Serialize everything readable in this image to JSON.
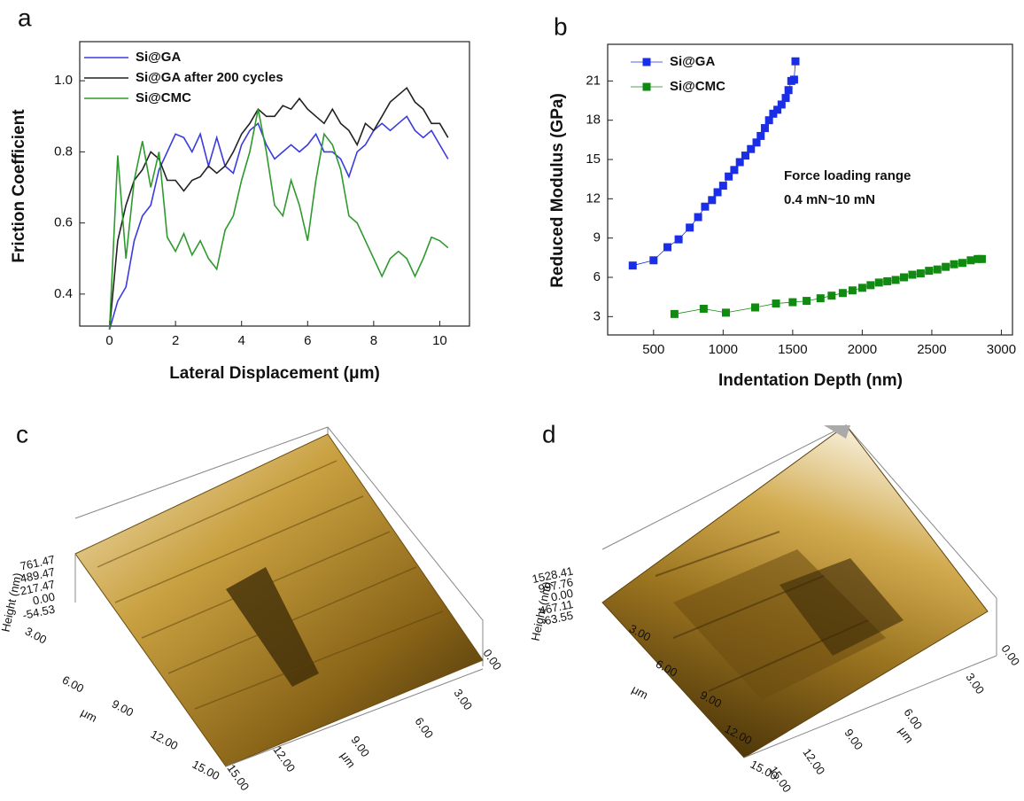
{
  "chart_data": [
    {
      "type": "line",
      "panel_label": "a",
      "x_label": "Lateral Displacement (μm)",
      "y_label": "Friction Coefficient",
      "xlim": [
        -0.9,
        10.9
      ],
      "ylim": [
        0.31,
        1.11
      ],
      "xticks": [
        0,
        2,
        4,
        6,
        8,
        10
      ],
      "yticks": [
        0.4,
        0.6,
        0.8,
        {
          "value": 1,
          "label": "1.0"
        }
      ],
      "x": [
        0,
        0.25,
        0.5,
        0.75,
        1,
        1.25,
        1.5,
        1.75,
        2,
        2.25,
        2.5,
        2.75,
        3,
        3.25,
        3.5,
        3.75,
        4,
        4.25,
        4.5,
        4.75,
        5,
        5.25,
        5.5,
        5.75,
        6,
        6.25,
        6.5,
        6.75,
        7,
        7.25,
        7.5,
        7.75,
        8,
        8.25,
        8.5,
        8.75,
        9,
        9.25,
        9.5,
        9.75,
        10,
        10.25
      ],
      "series": [
        {
          "name": "Si@GA",
          "color": "#3a3ae0",
          "values": [
            0.3,
            0.38,
            0.42,
            0.55,
            0.62,
            0.65,
            0.75,
            0.8,
            0.85,
            0.84,
            0.8,
            0.85,
            0.76,
            0.84,
            0.76,
            0.74,
            0.82,
            0.86,
            0.88,
            0.82,
            0.78,
            0.8,
            0.82,
            0.8,
            0.82,
            0.85,
            0.8,
            0.8,
            0.78,
            0.73,
            0.8,
            0.82,
            0.86,
            0.88,
            0.86,
            0.88,
            0.9,
            0.86,
            0.84,
            0.86,
            0.82,
            0.78
          ]
        },
        {
          "name": "Si@GA after 200 cycles",
          "color": "#222222",
          "values": [
            0.3,
            0.55,
            0.65,
            0.72,
            0.75,
            0.8,
            0.78,
            0.72,
            0.72,
            0.69,
            0.72,
            0.73,
            0.76,
            0.74,
            0.76,
            0.8,
            0.85,
            0.88,
            0.92,
            0.9,
            0.9,
            0.93,
            0.92,
            0.95,
            0.92,
            0.9,
            0.88,
            0.92,
            0.88,
            0.86,
            0.82,
            0.88,
            0.86,
            0.9,
            0.94,
            0.96,
            0.98,
            0.94,
            0.92,
            0.88,
            0.88,
            0.84
          ]
        },
        {
          "name": "Si@CMC",
          "color": "#2e9a2e",
          "values": [
            0.3,
            0.79,
            0.5,
            0.72,
            0.83,
            0.7,
            0.8,
            0.56,
            0.52,
            0.57,
            0.51,
            0.55,
            0.5,
            0.47,
            0.58,
            0.62,
            0.72,
            0.8,
            0.92,
            0.8,
            0.65,
            0.62,
            0.72,
            0.65,
            0.55,
            0.72,
            0.85,
            0.82,
            0.75,
            0.62,
            0.6,
            0.55,
            0.5,
            0.45,
            0.5,
            0.52,
            0.5,
            0.45,
            0.5,
            0.56,
            0.55,
            0.53
          ]
        }
      ]
    },
    {
      "type": "scatter",
      "panel_label": "b",
      "x_label": "Indentation Depth (nm)",
      "y_label": "Reduced Modulus (GPa)",
      "annotations": [
        "Force loading range",
        "0.4 mN~10 mN"
      ],
      "xlim": [
        170,
        3080
      ],
      "ylim": [
        1.6,
        23.8
      ],
      "xticks": [
        500,
        1000,
        1500,
        2000,
        2500,
        3000
      ],
      "yticks": [
        3,
        6,
        9,
        12,
        15,
        18,
        21
      ],
      "series": [
        {
          "name": "Si@GA",
          "color": "#1a2ee8",
          "x": [
            350,
            500,
            600,
            680,
            760,
            820,
            870,
            920,
            960,
            1000,
            1040,
            1080,
            1120,
            1160,
            1200,
            1240,
            1270,
            1300,
            1330,
            1360,
            1390,
            1420,
            1450,
            1470,
            1490,
            1510,
            1520
          ],
          "values": [
            6.9,
            7.3,
            8.3,
            8.9,
            9.8,
            10.6,
            11.4,
            11.9,
            12.5,
            13,
            13.7,
            14.2,
            14.8,
            15.3,
            15.8,
            16.3,
            16.8,
            17.4,
            18,
            18.5,
            18.8,
            19.2,
            19.7,
            20.3,
            21,
            21.1,
            22.5
          ]
        },
        {
          "name": "Si@CMC",
          "color": "#118a11",
          "x": [
            650,
            860,
            1020,
            1230,
            1380,
            1500,
            1600,
            1700,
            1780,
            1860,
            1930,
            2000,
            2060,
            2120,
            2180,
            2240,
            2300,
            2360,
            2420,
            2480,
            2540,
            2600,
            2660,
            2720,
            2780,
            2830,
            2860
          ],
          "values": [
            3.2,
            3.6,
            3.3,
            3.7,
            4,
            4.1,
            4.2,
            4.4,
            4.6,
            4.8,
            5,
            5.2,
            5.4,
            5.6,
            5.7,
            5.8,
            6,
            6.2,
            6.3,
            6.5,
            6.6,
            6.8,
            7,
            7.1,
            7.3,
            7.4,
            7.4
          ]
        }
      ]
    }
  ],
  "surface_plots": [
    {
      "panel_label": "c",
      "height_title": "Height (nm)",
      "height_ticks": [
        "761.47",
        "489.47",
        "217.47",
        "0.00",
        "-54.53"
      ],
      "left_ticks": [
        "3.00",
        "6.00",
        "9.00",
        "12.00",
        "15.00"
      ],
      "left_unit": "μm",
      "right_ticks": [
        "0.00",
        "3.00",
        "6.00",
        "9.00",
        "12.00",
        "15.00"
      ],
      "right_unit": "μm"
    },
    {
      "panel_label": "d",
      "height_title": "Height (nm)",
      "height_ticks": [
        "1528.41",
        "997.76",
        "0.00",
        "467.11",
        "-63.55"
      ],
      "left_ticks": [
        "3.00",
        "6.00",
        "9.00",
        "12.00",
        "15.00"
      ],
      "left_unit": "μm",
      "right_ticks": [
        "0.00",
        "3.00",
        "6.00",
        "9.00",
        "12.00",
        "15.00"
      ],
      "right_unit": "μm"
    }
  ]
}
